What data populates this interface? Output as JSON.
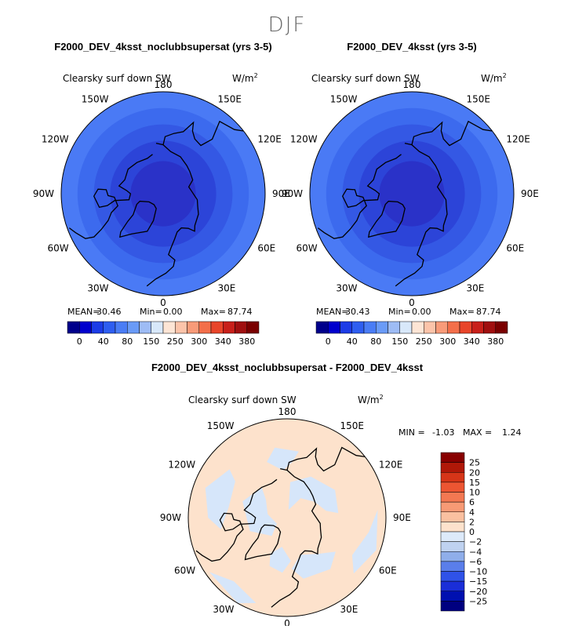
{
  "page": {
    "season": "DJF"
  },
  "panels": [
    {
      "title": "F2000_DEV_4ksst_noclubbsupersat (yrs 3-5)",
      "variable": "Clearsky surf down SW",
      "units_base": "W/m",
      "units_exp": "2",
      "lon_labels": [
        "180",
        "150E",
        "120E",
        "90E",
        "60E",
        "30E",
        "0",
        "30W",
        "60W",
        "90W",
        "120W",
        "150W"
      ],
      "stats": {
        "mean_label": "MEAN=",
        "mean": "30.46",
        "min_label": "Min=",
        "min": "0.00",
        "max_label": "Max=",
        "max": "87.74"
      },
      "colorbar": {
        "colors": [
          "#00008b",
          "#0000cd",
          "#1c3ce6",
          "#2e5ef0",
          "#4a7df5",
          "#6a9bf7",
          "#9ebcf5",
          "#d8e8fa",
          "#fde5d5",
          "#fcc4aa",
          "#f89b79",
          "#f36f4a",
          "#e8452a",
          "#c8201a",
          "#a00f0f",
          "#7a0000"
        ],
        "labels": [
          "0",
          "40",
          "80",
          "150",
          "250",
          "300",
          "340",
          "380"
        ]
      },
      "field": {
        "bands": [
          {
            "lat_from": 90,
            "lat_to": 74,
            "color": "#2a32c8"
          },
          {
            "lat_from": 74,
            "lat_to": 64,
            "color": "#2c44d8"
          },
          {
            "lat_from": 64,
            "lat_to": 56,
            "color": "#3458e4"
          },
          {
            "lat_from": 56,
            "lat_to": 48,
            "color": "#3c6aee"
          },
          {
            "lat_from": 48,
            "lat_to": 40,
            "color": "#4a7af5"
          }
        ]
      }
    },
    {
      "title": "F2000_DEV_4ksst (yrs 3-5)",
      "variable": "Clearsky surf down SW",
      "units_base": "W/m",
      "units_exp": "2",
      "lon_labels": [
        "180",
        "150E",
        "120E",
        "90E",
        "60E",
        "30E",
        "0",
        "30W",
        "60W",
        "90W",
        "120W",
        "150W"
      ],
      "stats": {
        "mean_label": "MEAN=",
        "mean": "30.43",
        "min_label": "Min=",
        "min": "0.00",
        "max_label": "Max=",
        "max": "87.74"
      },
      "colorbar": {
        "colors": [
          "#00008b",
          "#0000cd",
          "#1c3ce6",
          "#2e5ef0",
          "#4a7df5",
          "#6a9bf7",
          "#9ebcf5",
          "#d8e8fa",
          "#fde5d5",
          "#fcc4aa",
          "#f89b79",
          "#f36f4a",
          "#e8452a",
          "#c8201a",
          "#a00f0f",
          "#7a0000"
        ],
        "labels": [
          "0",
          "40",
          "80",
          "150",
          "250",
          "300",
          "340",
          "380"
        ]
      },
      "field": {
        "bands": [
          {
            "lat_from": 90,
            "lat_to": 74,
            "color": "#2a32c8"
          },
          {
            "lat_from": 74,
            "lat_to": 64,
            "color": "#2c44d8"
          },
          {
            "lat_from": 64,
            "lat_to": 56,
            "color": "#3458e4"
          },
          {
            "lat_from": 56,
            "lat_to": 48,
            "color": "#3c6aee"
          },
          {
            "lat_from": 48,
            "lat_to": 40,
            "color": "#4a7af5"
          }
        ]
      }
    },
    {
      "title": "F2000_DEV_4ksst_noclubbsupersat - F2000_DEV_4ksst",
      "variable": "Clearsky surf down SW",
      "units_base": "W/m",
      "units_exp": "2",
      "lon_labels": [
        "180",
        "150E",
        "120E",
        "90E",
        "60E",
        "30E",
        "0",
        "30W",
        "60W",
        "90W",
        "120W",
        "150W"
      ],
      "stats": {
        "min_label": "MIN =",
        "min": "-1.03",
        "max_label": "MAX =",
        "max": "1.24"
      },
      "colorbar": {
        "colors": [
          "#000080",
          "#0010b0",
          "#1a2ed8",
          "#2f52e8",
          "#5a7eea",
          "#8faeea",
          "#bfd2f0",
          "#ddeafa",
          "#fde2cc",
          "#fac0a0",
          "#f79a75",
          "#f37852",
          "#ec5532",
          "#d63518",
          "#b01808",
          "#880000"
        ],
        "labels": [
          "25",
          "20",
          "15",
          "10",
          "6",
          "4",
          "2",
          "0",
          "−2",
          "−4",
          "−6",
          "−10",
          "−15",
          "−20",
          "−25"
        ]
      },
      "field": {
        "base_color": "#fde2cc",
        "neg_color": "#d6e6fa"
      }
    }
  ],
  "chart_data": [
    {
      "type": "heatmap",
      "title": "F2000_DEV_4ksst_noclubbsupersat (yrs 3-5)",
      "subtitle": "Clearsky surf down SW",
      "units": "W/m^2",
      "projection": "north polar stereographic",
      "mean": 30.46,
      "min": 0.0,
      "max": 87.74,
      "colorbar_levels": [
        0,
        40,
        80,
        150,
        250,
        300,
        340,
        380
      ]
    },
    {
      "type": "heatmap",
      "title": "F2000_DEV_4ksst (yrs 3-5)",
      "subtitle": "Clearsky surf down SW",
      "units": "W/m^2",
      "projection": "north polar stereographic",
      "mean": 30.43,
      "min": 0.0,
      "max": 87.74,
      "colorbar_levels": [
        0,
        40,
        80,
        150,
        250,
        300,
        340,
        380
      ]
    },
    {
      "type": "heatmap",
      "title": "F2000_DEV_4ksst_noclubbsupersat - F2000_DEV_4ksst",
      "subtitle": "Clearsky surf down SW",
      "units": "W/m^2",
      "projection": "north polar stereographic",
      "min": -1.03,
      "max": 1.24,
      "colorbar_levels": [
        25,
        20,
        15,
        10,
        6,
        4,
        2,
        0,
        -2,
        -4,
        -6,
        -10,
        -15,
        -20,
        -25
      ]
    }
  ]
}
